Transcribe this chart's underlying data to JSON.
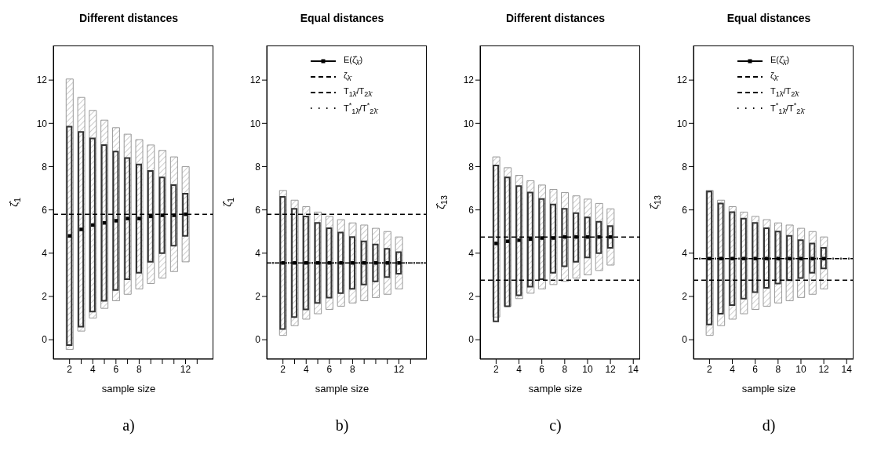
{
  "chart_data": [
    {
      "type": "bar",
      "title": "Different distances",
      "xlabel": "sample size",
      "ylabel": "ζ̂$_{1}$",
      "annotations": [
        "a)"
      ],
      "marker": "square",
      "x": [
        2,
        3,
        4,
        5,
        6,
        7,
        8,
        9,
        10,
        11,
        12
      ],
      "xlim": [
        0.6,
        14.4
      ],
      "xticks": [
        2,
        {
          "value": 3,
          "label": null
        },
        4,
        {
          "value": 5,
          "label": null
        },
        6,
        {
          "value": 7,
          "label": null
        },
        8,
        {
          "value": 9,
          "label": null
        },
        {
          "value": 10,
          "label": null
        },
        {
          "value": 11,
          "label": null
        },
        12,
        {
          "value": 13,
          "label": null
        }
      ],
      "ylim": [
        -0.9,
        13.6
      ],
      "yticks": [
        0,
        2,
        4,
        6,
        8,
        10,
        12
      ],
      "series": [
        {
          "color": "#999999",
          "base": [
            -0.45,
            0.4,
            1.0,
            1.45,
            1.8,
            2.1,
            2.35,
            2.6,
            2.85,
            3.15,
            3.6
          ],
          "values": [
            12.5,
            10.8,
            9.6,
            8.7,
            8.0,
            7.4,
            6.9,
            6.4,
            5.9,
            5.3,
            4.4
          ]
        },
        {
          "color": "#333333",
          "base": [
            -0.25,
            0.6,
            1.3,
            1.8,
            2.3,
            2.8,
            3.1,
            3.6,
            4.0,
            4.35,
            4.8
          ],
          "values": [
            10.1,
            9.0,
            8.0,
            7.2,
            6.4,
            5.6,
            5.0,
            4.2,
            3.5,
            2.8,
            1.95
          ]
        },
        {
          "type": "scatter",
          "color": "#000000",
          "values": [
            4.8,
            5.1,
            5.3,
            5.4,
            5.5,
            5.6,
            5.6,
            5.7,
            5.75,
            5.75,
            5.8
          ]
        }
      ],
      "ref_lines": [
        {
          "axis": "y",
          "value": 5.8,
          "color": "#000000",
          "line_style": "dashed"
        }
      ]
    },
    {
      "type": "bar",
      "title": "Equal distances",
      "xlabel": "sample size",
      "ylabel": "ζ̂$_{1}$",
      "annotations": [
        "b)"
      ],
      "legend": "top right",
      "marker": "square",
      "x": [
        2,
        3,
        4,
        5,
        6,
        7,
        8,
        9,
        10,
        11,
        12
      ],
      "xlim": [
        0.6,
        14.4
      ],
      "xticks": [
        2,
        {
          "value": 3,
          "label": null
        },
        4,
        {
          "value": 5,
          "label": null
        },
        6,
        {
          "value": 7,
          "label": null
        },
        8,
        {
          "value": 9,
          "label": null
        },
        {
          "value": 10,
          "label": null
        },
        {
          "value": 11,
          "label": null
        },
        12,
        {
          "value": 13,
          "label": null
        }
      ],
      "ylim": [
        -0.9,
        13.6
      ],
      "yticks": [
        0,
        2,
        4,
        6,
        8,
        10,
        12
      ],
      "series": [
        {
          "color": "#999999",
          "base": [
            0.2,
            0.65,
            0.95,
            1.2,
            1.4,
            1.55,
            1.7,
            1.8,
            1.95,
            2.1,
            2.35
          ],
          "values": [
            6.7,
            5.8,
            5.2,
            4.7,
            4.3,
            4.0,
            3.7,
            3.5,
            3.2,
            2.9,
            2.4
          ]
        },
        {
          "color": "#333333",
          "base": [
            0.5,
            1.05,
            1.4,
            1.7,
            1.95,
            2.15,
            2.35,
            2.55,
            2.7,
            2.9,
            3.05
          ],
          "values": [
            6.1,
            5.0,
            4.3,
            3.7,
            3.2,
            2.8,
            2.4,
            2.0,
            1.7,
            1.3,
            1.0
          ]
        },
        {
          "type": "scatter",
          "name": "E(ζ̂$_{λ̄}$)",
          "color": "#000000",
          "values": [
            3.55,
            3.55,
            3.55,
            3.55,
            3.55,
            3.55,
            3.55,
            3.55,
            3.55,
            3.55,
            3.55
          ]
        }
      ],
      "ref_lines": [
        {
          "axis": "y",
          "value": 5.8,
          "color": "#000000",
          "line_style": "dashed",
          "label": "ζ$_{λ̄}$"
        },
        {
          "axis": "y",
          "value": 3.55,
          "color": "#000000",
          "line_style": "dashed",
          "label": "T$_{1λ̄}$/T$_{2λ̄}$"
        },
        {
          "axis": "y",
          "value": 3.55,
          "color": "#000000",
          "line_style": "dotted",
          "label": "T$^{*}$$_{1λ̄}$/T$^{*}$$_{2λ̄}$"
        }
      ]
    },
    {
      "type": "bar",
      "title": "Different distances",
      "xlabel": "sample size",
      "ylabel": "ζ̂$_{13}$",
      "annotations": [
        "c)"
      ],
      "marker": "square",
      "x": [
        2,
        3,
        4,
        5,
        6,
        7,
        8,
        9,
        10,
        11,
        12
      ],
      "xlim": [
        0.6,
        14.6
      ],
      "xticks": [
        2,
        4,
        6,
        8,
        10,
        12,
        14
      ],
      "ylim": [
        -0.9,
        13.6
      ],
      "yticks": [
        0,
        2,
        4,
        6,
        8,
        10,
        12
      ],
      "series": [
        {
          "color": "#999999",
          "base": [
            1.05,
            1.55,
            1.9,
            2.15,
            2.35,
            2.55,
            2.7,
            2.85,
            3.0,
            3.2,
            3.45
          ],
          "values": [
            7.4,
            6.4,
            5.7,
            5.2,
            4.8,
            4.4,
            4.1,
            3.8,
            3.5,
            3.1,
            2.6
          ]
        },
        {
          "color": "#333333",
          "base": [
            0.85,
            1.55,
            2.05,
            2.45,
            2.8,
            3.1,
            3.4,
            3.6,
            3.8,
            4.0,
            4.25
          ],
          "values": [
            7.2,
            5.95,
            5.05,
            4.35,
            3.7,
            3.15,
            2.65,
            2.25,
            1.85,
            1.45,
            1.0
          ]
        },
        {
          "type": "scatter",
          "color": "#000000",
          "values": [
            4.45,
            4.55,
            4.6,
            4.65,
            4.7,
            4.7,
            4.75,
            4.75,
            4.75,
            4.75,
            4.75
          ]
        }
      ],
      "ref_lines": [
        {
          "axis": "y",
          "value": 4.75,
          "color": "#000000",
          "line_style": "dashed"
        },
        {
          "axis": "y",
          "value": 2.75,
          "color": "#000000",
          "line_style": "dashed"
        }
      ]
    },
    {
      "type": "bar",
      "title": "Equal distances",
      "xlabel": "sample size",
      "ylabel": "ζ̂$_{13}$",
      "annotations": [
        "d)"
      ],
      "legend": "top right",
      "marker": "square",
      "x": [
        2,
        3,
        4,
        5,
        6,
        7,
        8,
        9,
        10,
        11,
        12
      ],
      "xlim": [
        0.6,
        14.6
      ],
      "xticks": [
        2,
        4,
        6,
        8,
        10,
        12,
        14
      ],
      "ylim": [
        -0.9,
        13.6
      ],
      "yticks": [
        0,
        2,
        4,
        6,
        8,
        10,
        12
      ],
      "series": [
        {
          "color": "#999999",
          "base": [
            0.2,
            0.65,
            0.95,
            1.2,
            1.4,
            1.55,
            1.7,
            1.8,
            1.95,
            2.1,
            2.35
          ],
          "values": [
            6.7,
            5.8,
            5.2,
            4.7,
            4.3,
            4.0,
            3.7,
            3.5,
            3.2,
            2.9,
            2.4
          ]
        },
        {
          "color": "#333333",
          "base": [
            0.7,
            1.2,
            1.6,
            1.9,
            2.2,
            2.4,
            2.6,
            2.75,
            2.85,
            3.1,
            3.3
          ],
          "values": [
            6.15,
            5.1,
            4.3,
            3.7,
            3.2,
            2.75,
            2.4,
            2.05,
            1.75,
            1.35,
            0.95
          ]
        },
        {
          "type": "scatter",
          "name": "E(ζ̂$_{λ̄}$)",
          "color": "#000000",
          "values": [
            3.75,
            3.75,
            3.75,
            3.75,
            3.75,
            3.75,
            3.75,
            3.75,
            3.75,
            3.75,
            3.75
          ]
        }
      ],
      "ref_lines": [
        {
          "axis": "y",
          "value": 2.75,
          "color": "#000000",
          "line_style": "dashed",
          "label": "ζ$_{λ̄}$"
        },
        {
          "axis": "y",
          "value": 3.75,
          "color": "#000000",
          "line_style": "dashed",
          "label": "T$_{1λ̄}$/T$_{2λ̄}$"
        },
        {
          "axis": "y",
          "value": 3.75,
          "color": "#000000",
          "line_style": "dotted",
          "label": "T$^{*}$$_{1λ̄}$/T$^{*}$$_{2λ̄}$"
        }
      ]
    }
  ]
}
